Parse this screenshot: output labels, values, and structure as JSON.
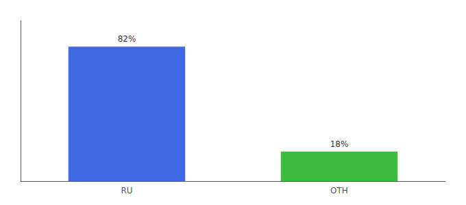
{
  "chart_data": {
    "type": "bar",
    "categories": [
      "RU",
      "OTH"
    ],
    "values": [
      82,
      18
    ],
    "value_labels": [
      "82%",
      "18%"
    ],
    "colors": [
      "#4169E1",
      "#3CBB3C"
    ],
    "ylim": [
      0,
      98
    ],
    "data_labels": true,
    "tick_labels": "x",
    "grid": false
  }
}
